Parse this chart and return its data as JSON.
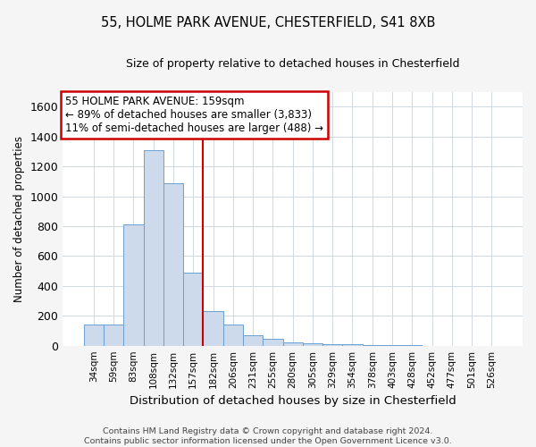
{
  "title1": "55, HOLME PARK AVENUE, CHESTERFIELD, S41 8XB",
  "title2": "Size of property relative to detached houses in Chesterfield",
  "xlabel": "Distribution of detached houses by size in Chesterfield",
  "ylabel": "Number of detached properties",
  "categories": [
    "34sqm",
    "59sqm",
    "83sqm",
    "108sqm",
    "132sqm",
    "157sqm",
    "182sqm",
    "206sqm",
    "231sqm",
    "255sqm",
    "280sqm",
    "305sqm",
    "329sqm",
    "354sqm",
    "378sqm",
    "403sqm",
    "428sqm",
    "452sqm",
    "477sqm",
    "501sqm",
    "526sqm"
  ],
  "values": [
    140,
    140,
    810,
    1310,
    1090,
    490,
    230,
    140,
    70,
    45,
    20,
    15,
    10,
    8,
    5,
    3,
    2,
    1,
    0,
    0,
    0
  ],
  "bar_color": "#cddaeb",
  "bar_edge_color": "#6a9fd0",
  "red_line_x": 5.5,
  "annotation_text": "55 HOLME PARK AVENUE: 159sqm\n← 89% of detached houses are smaller (3,833)\n11% of semi-detached houses are larger (488) →",
  "ylim": [
    0,
    1700
  ],
  "yticks": [
    0,
    200,
    400,
    600,
    800,
    1000,
    1200,
    1400,
    1600
  ],
  "footer_line1": "Contains HM Land Registry data © Crown copyright and database right 2024.",
  "footer_line2": "Contains public sector information licensed under the Open Government Licence v3.0.",
  "bg_color": "#f5f5f5",
  "plot_bg_color": "#ffffff",
  "grid_color": "#d0d8e0"
}
